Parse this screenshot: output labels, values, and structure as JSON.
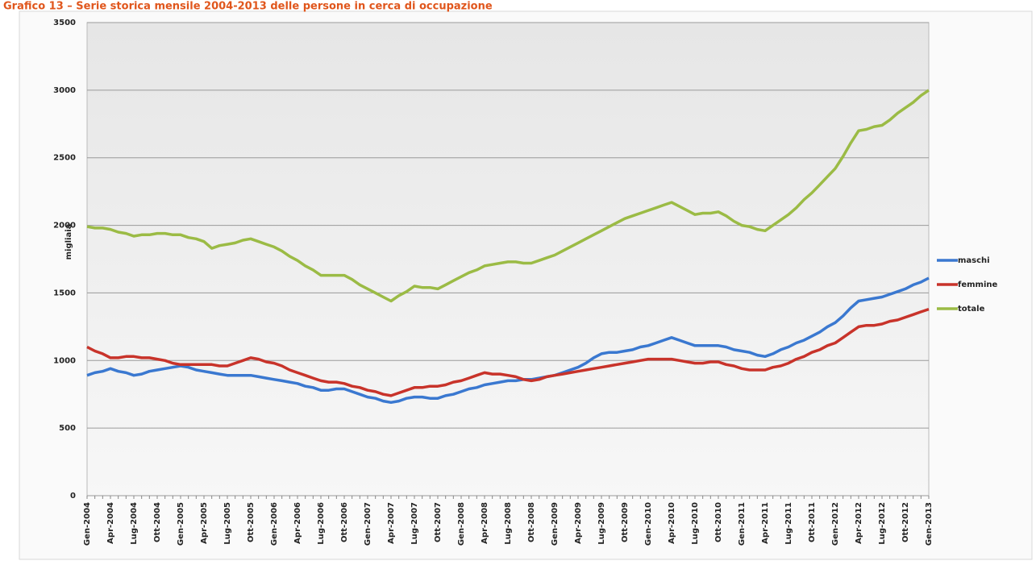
{
  "chart_data": {
    "type": "line",
    "title": "Grafico 13 – Serie storica mensile 2004-2013 delle persone in cerca di occupazione",
    "ylabel": "migliaia",
    "categories": [
      "Gen-2004",
      null,
      null,
      "Apr-2004",
      null,
      null,
      "Lug-2004",
      null,
      null,
      "Ott-2004",
      null,
      null,
      "Gen-2005",
      null,
      null,
      "Apr-2005",
      null,
      null,
      "Lug-2005",
      null,
      null,
      "Ott-2005",
      null,
      null,
      "Gen-2006",
      null,
      null,
      "Apr-2006",
      null,
      null,
      "Lug-2006",
      null,
      null,
      "Ott-2006",
      null,
      null,
      "Gen-2007",
      null,
      null,
      "Apr-2007",
      null,
      null,
      "Lug-2007",
      null,
      null,
      "Ott-2007",
      null,
      null,
      "Gen-2008",
      null,
      null,
      "Apr-2008",
      null,
      null,
      "Lug-2008",
      null,
      null,
      "Ott-2008",
      null,
      null,
      "Gen-2009",
      null,
      null,
      "Apr-2009",
      null,
      null,
      "Lug-2009",
      null,
      null,
      "Ott-2009",
      null,
      null,
      "Gen-2010",
      null,
      null,
      "Apr-2010",
      null,
      null,
      "Lug-2010",
      null,
      null,
      "Ott-2010",
      null,
      null,
      "Gen-2011",
      null,
      null,
      "Apr-2011",
      null,
      null,
      "Lug-2011",
      null,
      null,
      "Ott-2011",
      null,
      null,
      "Gen-2012",
      null,
      null,
      "Apr-2012",
      null,
      null,
      "Lug-2012",
      null,
      null,
      "Ott-2012",
      null,
      null,
      "Gen-2013"
    ],
    "series": [
      {
        "name": "maschi",
        "color": "#3a78d0",
        "values": [
          890,
          910,
          920,
          940,
          920,
          910,
          890,
          900,
          920,
          930,
          940,
          950,
          960,
          950,
          930,
          920,
          910,
          900,
          890,
          890,
          890,
          890,
          880,
          870,
          860,
          850,
          840,
          830,
          810,
          800,
          780,
          780,
          790,
          790,
          770,
          750,
          730,
          720,
          700,
          690,
          700,
          720,
          730,
          730,
          720,
          720,
          740,
          750,
          770,
          790,
          800,
          820,
          830,
          840,
          850,
          850,
          860,
          860,
          870,
          880,
          890,
          910,
          930,
          950,
          980,
          1020,
          1050,
          1060,
          1060,
          1070,
          1080,
          1100,
          1110,
          1130,
          1150,
          1170,
          1150,
          1130,
          1110,
          1110,
          1110,
          1110,
          1100,
          1080,
          1070,
          1060,
          1040,
          1030,
          1050,
          1080,
          1100,
          1130,
          1150,
          1180,
          1210,
          1250,
          1280,
          1330,
          1390,
          1440,
          1450,
          1460,
          1470,
          1490,
          1510,
          1530,
          1560,
          1580,
          1610
        ]
      },
      {
        "name": "femmine",
        "color": "#c8332a",
        "values": [
          1100,
          1070,
          1050,
          1020,
          1020,
          1030,
          1030,
          1020,
          1020,
          1010,
          1000,
          980,
          970,
          970,
          970,
          970,
          970,
          960,
          960,
          980,
          1000,
          1020,
          1010,
          990,
          980,
          960,
          930,
          910,
          890,
          870,
          850,
          840,
          840,
          830,
          810,
          800,
          780,
          770,
          750,
          740,
          760,
          780,
          800,
          800,
          810,
          810,
          820,
          840,
          850,
          870,
          890,
          910,
          900,
          900,
          890,
          880,
          860,
          850,
          860,
          880,
          890,
          900,
          910,
          920,
          930,
          940,
          950,
          960,
          970,
          980,
          990,
          1000,
          1010,
          1010,
          1010,
          1010,
          1000,
          990,
          980,
          980,
          990,
          990,
          970,
          960,
          940,
          930,
          930,
          930,
          950,
          960,
          980,
          1010,
          1030,
          1060,
          1080,
          1110,
          1130,
          1170,
          1210,
          1250,
          1260,
          1260,
          1270,
          1290,
          1300,
          1320,
          1340,
          1360,
          1380
        ]
      },
      {
        "name": "totale",
        "color": "#9bbb45",
        "values": [
          1990,
          1980,
          1980,
          1970,
          1950,
          1940,
          1920,
          1930,
          1930,
          1940,
          1940,
          1930,
          1930,
          1910,
          1900,
          1880,
          1830,
          1850,
          1860,
          1870,
          1890,
          1900,
          1880,
          1860,
          1840,
          1810,
          1770,
          1740,
          1700,
          1670,
          1630,
          1630,
          1630,
          1630,
          1600,
          1560,
          1530,
          1500,
          1470,
          1440,
          1480,
          1510,
          1550,
          1540,
          1540,
          1530,
          1560,
          1590,
          1620,
          1650,
          1670,
          1700,
          1710,
          1720,
          1730,
          1730,
          1720,
          1720,
          1740,
          1760,
          1780,
          1810,
          1840,
          1870,
          1900,
          1930,
          1960,
          1990,
          2020,
          2050,
          2070,
          2090,
          2110,
          2130,
          2150,
          2170,
          2140,
          2110,
          2080,
          2090,
          2090,
          2100,
          2070,
          2030,
          2000,
          1990,
          1970,
          1960,
          2000,
          2040,
          2080,
          2130,
          2190,
          2240,
          2300,
          2360,
          2420,
          2510,
          2610,
          2700,
          2710,
          2730,
          2740,
          2780,
          2830,
          2870,
          2910,
          2960,
          3000
        ]
      }
    ],
    "ylim": [
      0,
      3500
    ],
    "yticks": [
      0,
      500,
      1000,
      1500,
      2000,
      2500,
      3000,
      3500
    ],
    "grid": true,
    "legend": "right"
  }
}
